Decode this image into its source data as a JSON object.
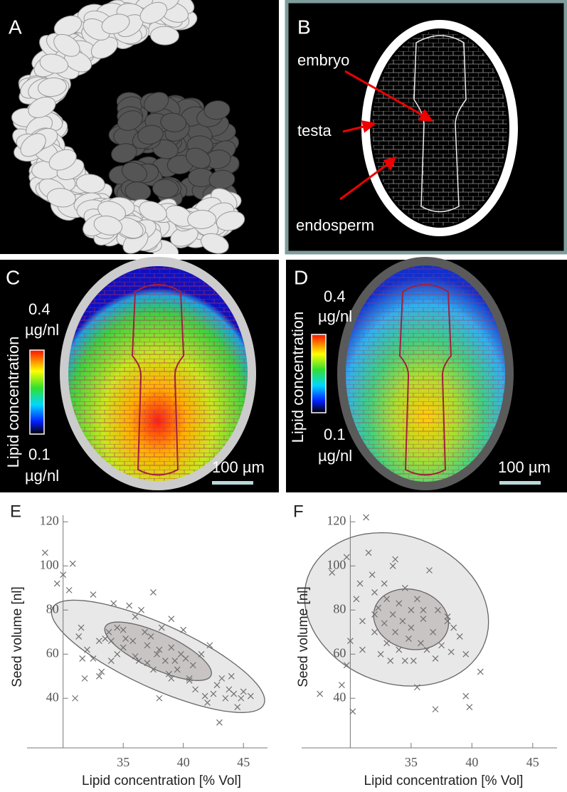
{
  "panels": {
    "A": {
      "label": "A"
    },
    "B": {
      "label": "B",
      "annotations": [
        "embryo",
        "testa",
        "endosperm"
      ]
    },
    "C": {
      "label": "C",
      "colorbar_max": 0.4,
      "colorbar_min": 0.1,
      "unit": "µg/nl",
      "colorbar_title": "Lipid concentration",
      "scale_bar": "100 µm"
    },
    "D": {
      "label": "D",
      "colorbar_max": 0.4,
      "colorbar_min": 0.1,
      "unit": "µg/nl",
      "colorbar_title": "Lipid concentration",
      "scale_bar": "100 µm"
    }
  },
  "chart_data": [
    {
      "type": "scatter",
      "panel_label": "E",
      "x_label": "Lipid concentration [% Vol]",
      "y_label": "Seed volume [nl]",
      "x": [
        28.5,
        29.5,
        30,
        30.5,
        30.8,
        31,
        31.5,
        31.3,
        31.6,
        31.8,
        32,
        32.5,
        32.5,
        33,
        33,
        33.2,
        33.5,
        33.8,
        34,
        34,
        34.2,
        34.5,
        34.5,
        35,
        35,
        35.2,
        35.5,
        35.8,
        36,
        36,
        36.3,
        36.5,
        36.8,
        37,
        37,
        37.3,
        37.5,
        37.8,
        38,
        38,
        38.2,
        38.5,
        38.8,
        39,
        39,
        39.3,
        39.5,
        39.8,
        40,
        40.2,
        40.5,
        40.8,
        41,
        41.5,
        42,
        42.2,
        42.5,
        42.8,
        43,
        43.2,
        43.5,
        43.8,
        44,
        44.2,
        44.5,
        44.8,
        45,
        45.6,
        37.5,
        39,
        40.5,
        41.8
      ],
      "y": [
        106,
        92,
        96,
        89,
        101,
        40,
        72,
        68,
        58,
        49,
        62,
        58,
        87,
        50,
        66,
        52,
        67,
        70,
        57,
        66,
        83,
        60,
        72,
        63,
        71,
        67,
        82,
        66,
        59,
        77,
        57,
        80,
        70,
        56,
        64,
        68,
        53,
        60,
        62,
        40,
        72,
        57,
        51,
        63,
        49,
        57,
        53,
        60,
        71,
        58,
        48,
        55,
        44,
        60,
        38,
        64,
        42,
        46,
        29,
        49,
        40,
        44,
        50,
        42,
        36,
        40,
        43,
        41,
        88,
        76,
        49,
        41
      ],
      "marker_color": "#707070",
      "ellipses": [
        {
          "center": [
            37.9,
            59
          ],
          "axis1": [
            8.8,
            -21.8
          ],
          "axis2": [
            -1.1,
            -13.2
          ],
          "fill": "#e8e8e8"
        },
        {
          "center": [
            37.9,
            61.3
          ],
          "axis1": [
            4.4,
            -11
          ],
          "axis2": [
            -0.6,
            -7.4
          ],
          "fill": "#c9c4c4"
        }
      ],
      "xlim": [
        27,
        47
      ],
      "ylim": [
        17.5,
        123
      ],
      "xticks": [
        35,
        40,
        45
      ],
      "yticks": [
        40,
        60,
        80,
        100,
        120
      ],
      "y_axis_at": 30
    },
    {
      "type": "scatter",
      "panel_label": "F",
      "x_label": "Lipid concentration [% Vol]",
      "y_label": "Seed volume [nl]",
      "x": [
        27.5,
        28.5,
        29.3,
        29.7,
        29.7,
        30,
        30.2,
        30.5,
        30.8,
        31,
        31,
        31.3,
        31.5,
        31.8,
        32,
        32,
        32.3,
        32.5,
        32.8,
        32.8,
        33,
        33,
        33.3,
        33.5,
        33.5,
        33.7,
        34,
        34,
        34.3,
        34.5,
        34.5,
        34.8,
        35,
        35,
        35.2,
        35.5,
        35.5,
        35.8,
        36,
        36.3,
        36.5,
        36.8,
        37,
        37,
        37.2,
        37.5,
        38,
        38.3,
        38.5,
        39,
        39.5,
        39.5,
        39.8,
        40.7,
        38,
        33.7,
        36,
        32
      ],
      "y": [
        42,
        97,
        46,
        104,
        55,
        66,
        34,
        85,
        92,
        62,
        75,
        122,
        106,
        96,
        88,
        70,
        81,
        60,
        92,
        74,
        65,
        85,
        57,
        78,
        100,
        70,
        83,
        62,
        75,
        90,
        57,
        67,
        80,
        72,
        57,
        45,
        85,
        65,
        76,
        62,
        98,
        70,
        58,
        35,
        80,
        64,
        75,
        61,
        72,
        68,
        60,
        41,
        36,
        52,
        77,
        103,
        80,
        78
      ],
      "marker_color": "#707070",
      "ellipses": [
        {
          "center": [
            33.8,
            80.3
          ],
          "axis1": [
            7.3,
            -14.5
          ],
          "axis2": [
            -2.0,
            -31.6
          ],
          "fill": "#e8e8e8"
        },
        {
          "center": [
            35,
            75.8
          ],
          "axis1": [
            3.0,
            -4.8
          ],
          "axis2": [
            -0.7,
            -12.9
          ],
          "fill": "#c9c4c4"
        }
      ],
      "xlim": [
        26,
        47
      ],
      "ylim": [
        17.5,
        123
      ],
      "xticks": [
        35,
        40,
        45
      ],
      "yticks": [
        40,
        60,
        80,
        100,
        120
      ],
      "y_axis_at": 30
    }
  ]
}
